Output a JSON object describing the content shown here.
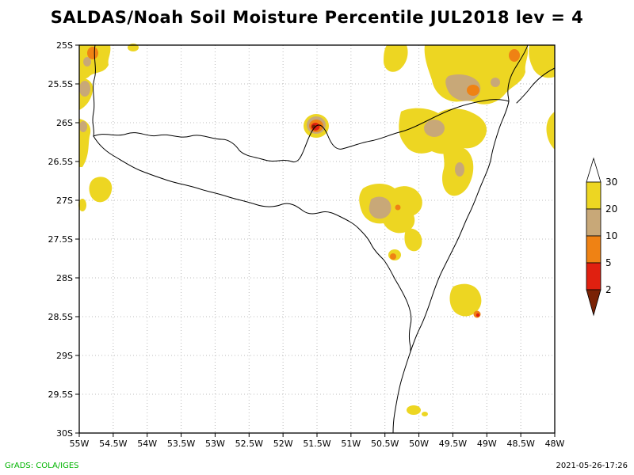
{
  "title": "SALDAS/Noah Soil Moisture Percentile JUL2018 lev = 4",
  "footer": {
    "credit": "GrADS: COLA/IGES",
    "timestamp": "2021-05-26-17:26"
  },
  "palette": {
    "yellow": "#EDD622",
    "tan": "#C8A878",
    "orange": "#EF8214",
    "red": "#E02010",
    "darkred": "#7A2205",
    "white": "#FFFFFF",
    "grid_gray": "#BCBCBC",
    "credit_green": "#00B400",
    "frame_black": "#000000"
  },
  "chart_data": {
    "type": "heatmap",
    "title": "SALDAS/Noah Soil Moisture Percentile JUL2018 lev = 4",
    "x_ticks": [
      "55W",
      "54.5W",
      "54W",
      "53.5W",
      "53W",
      "52.5W",
      "52W",
      "51.5W",
      "51W",
      "50.5W",
      "50W",
      "49.5W",
      "49W",
      "48.5W",
      "48W"
    ],
    "y_ticks": [
      "25S",
      "25.5S",
      "26S",
      "26.5S",
      "27S",
      "27.5S",
      "28S",
      "28.5S",
      "29S",
      "29.5S",
      "30S"
    ],
    "x_range": [
      "55W",
      "48W"
    ],
    "y_range": [
      "25S",
      "30S"
    ],
    "grid": true,
    "legend_position": "right",
    "colorbar": {
      "labels": [
        "30",
        "20",
        "10",
        "5",
        "2"
      ],
      "segment_colors_top_to_bottom": [
        "yellow",
        "tan",
        "orange",
        "red"
      ],
      "arrow_top_color": "white",
      "arrow_bottom_color": "darkred"
    },
    "shaded_regions": [
      {
        "color": "yellow",
        "approx_extent": "55W-54.6W, 25S-26.2S west-edge strip with orange spot near 54.8W 25.1S and tan patches"
      },
      {
        "color": "yellow",
        "approx_extent": "54.8W-54.5W, 26.7S-27S blob"
      },
      {
        "color": "yellow",
        "approx_extent": "50.5W-48W, 25S-26.6S large cluster with tan cores and orange spots near 49.2W 25.6S and 48.6W 25.1S"
      },
      {
        "color": "yellow",
        "approx_extent": "50.9W-49.1W, 26.8S-27.5S cluster with tan core near 50.7W 27.1S"
      },
      {
        "color": "red",
        "approx_extent": "51.6W-51.4W, 25.9S-26.1S bullseye: yellow/tan/orange rings, red core, dark-red center"
      },
      {
        "color": "yellow",
        "approx_extent": "50.4W, 27.7S small spot with orange core"
      },
      {
        "color": "yellow",
        "approx_extent": "49.6W-49.1W, 28.1S-28.5S blob with orange/red dot at SE edge"
      },
      {
        "color": "yellow",
        "approx_extent": "50.2W-49.9W, 29.7S small coastal spots"
      }
    ]
  }
}
